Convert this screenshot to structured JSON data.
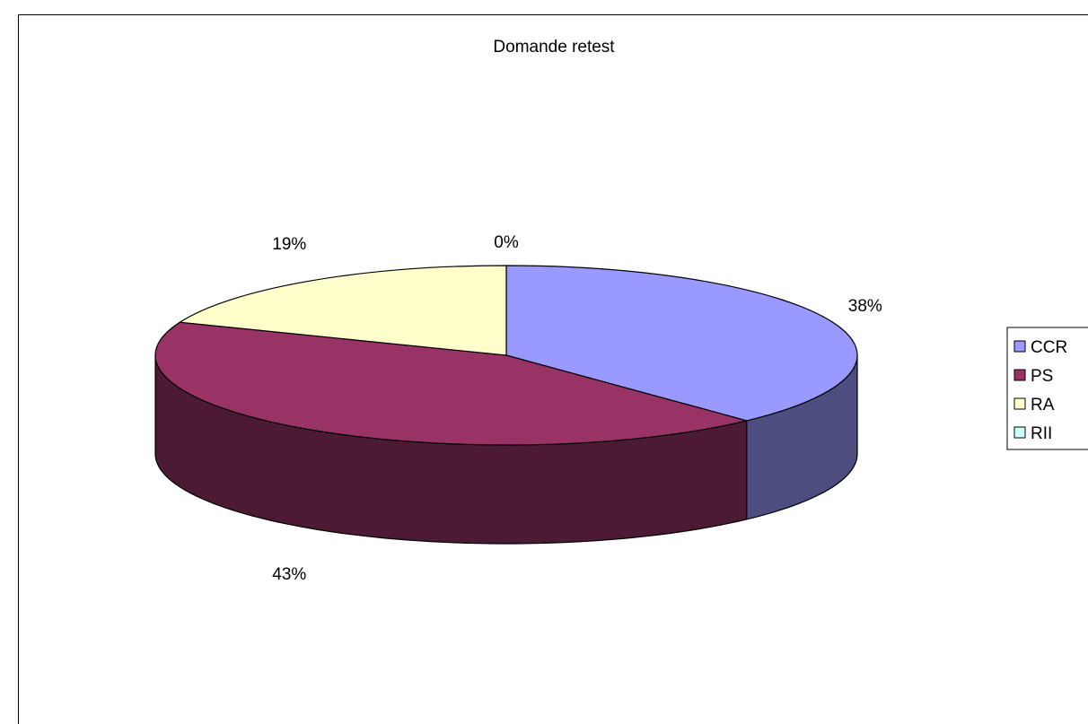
{
  "chart_data": {
    "type": "pie",
    "title": "Domande retest",
    "categories": [
      "CCR",
      "PS",
      "RA",
      "RII"
    ],
    "values": [
      38,
      43,
      19,
      0
    ],
    "value_labels": [
      "38%",
      "43%",
      "19%",
      "0%"
    ],
    "colors": {
      "CCR": "#9999FF",
      "PS": "#993366",
      "RA": "#FFFFCC",
      "RII": "#CCFFFF"
    },
    "style": "3d",
    "legend_position": "right"
  }
}
